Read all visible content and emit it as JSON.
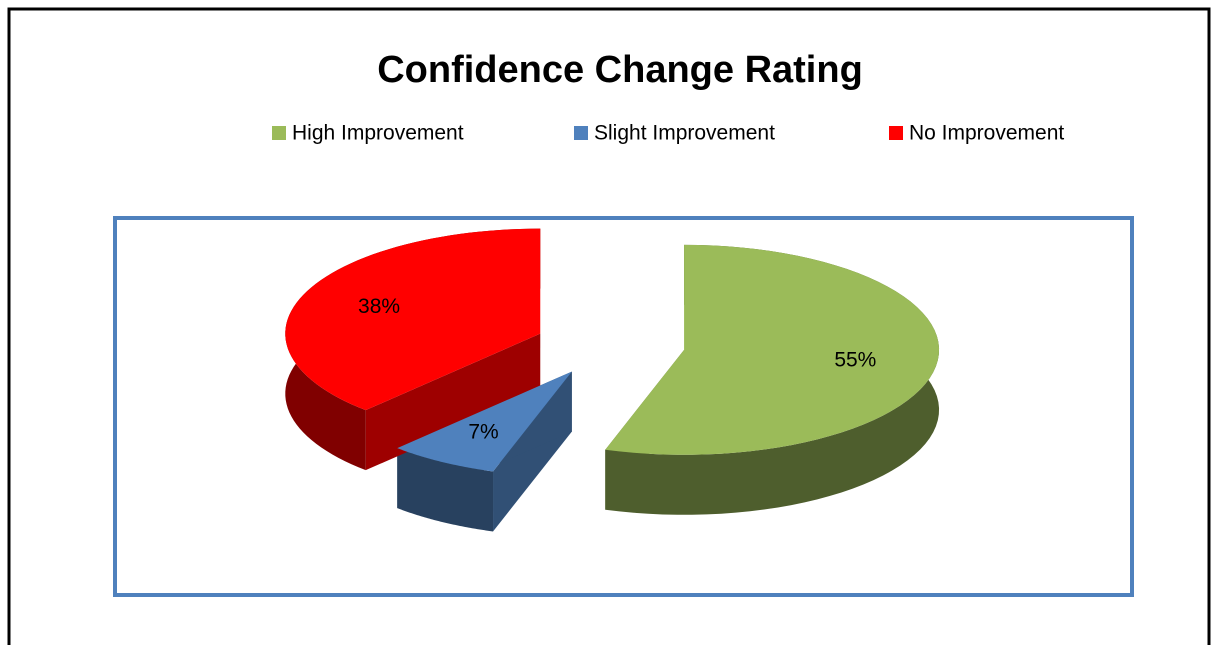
{
  "chart_data": {
    "type": "pie3d",
    "title": "Confidence Change Rating",
    "categories": [
      "High Improvement",
      "Slight Improvement",
      "No Improvement"
    ],
    "values": [
      55,
      7,
      38
    ],
    "value_labels": [
      "55%",
      "7%",
      "38%"
    ],
    "colors": [
      "#9bbb59",
      "#4f81bd",
      "#ff0000"
    ],
    "legend": "top",
    "exploded": true
  }
}
